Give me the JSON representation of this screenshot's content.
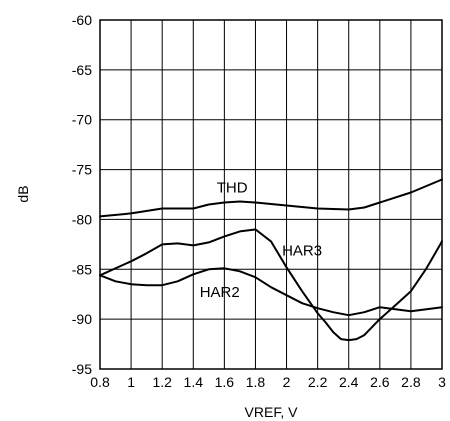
{
  "chart_data": {
    "type": "line",
    "title": "",
    "xlabel": "VREF, V",
    "ylabel": "dB",
    "xlim": [
      0.8,
      3.0
    ],
    "ylim": [
      -95,
      -60
    ],
    "xticks": [
      0.8,
      1.0,
      1.2,
      1.4,
      1.6,
      1.8,
      2.0,
      2.2,
      2.4,
      2.6,
      2.8,
      3.0
    ],
    "xtick_labels": [
      "0.8",
      "1",
      "1.2",
      "1.4",
      "1.6",
      "1.8",
      "2",
      "2.2",
      "2.4",
      "2.6",
      "2.8",
      "3"
    ],
    "yticks": [
      -60,
      -65,
      -70,
      -75,
      -80,
      -85,
      -90,
      -95
    ],
    "ytick_labels": [
      "-60",
      "-65",
      "-70",
      "-75",
      "-80",
      "-85",
      "-90",
      "-95"
    ],
    "grid": true,
    "legend": "none",
    "series": [
      {
        "name": "THD",
        "label_at": [
          1.65,
          -77.3
        ],
        "x": [
          0.8,
          1.0,
          1.2,
          1.4,
          1.5,
          1.6,
          1.7,
          1.8,
          2.0,
          2.2,
          2.4,
          2.5,
          2.6,
          2.8,
          3.0
        ],
        "y": [
          -79.7,
          -79.4,
          -78.9,
          -78.9,
          -78.5,
          -78.3,
          -78.2,
          -78.3,
          -78.6,
          -78.9,
          -79.0,
          -78.8,
          -78.3,
          -77.3,
          -76.0
        ]
      },
      {
        "name": "HAR3",
        "label_at": [
          2.1,
          -83.6
        ],
        "x": [
          0.8,
          1.0,
          1.1,
          1.2,
          1.3,
          1.4,
          1.5,
          1.6,
          1.7,
          1.8,
          1.9,
          2.0,
          2.1,
          2.2,
          2.25,
          2.3,
          2.35,
          2.4,
          2.45,
          2.5,
          2.6,
          2.7,
          2.8,
          2.9,
          3.0
        ],
        "y": [
          -85.6,
          -84.2,
          -83.4,
          -82.5,
          -82.4,
          -82.6,
          -82.3,
          -81.7,
          -81.2,
          -81.0,
          -82.2,
          -84.8,
          -87.2,
          -89.4,
          -90.3,
          -91.3,
          -92.0,
          -92.1,
          -92.0,
          -91.6,
          -90.0,
          -88.6,
          -87.2,
          -84.9,
          -82.2
        ]
      },
      {
        "name": "HAR2",
        "label_at": [
          1.57,
          -87.8
        ],
        "x": [
          0.8,
          0.9,
          1.0,
          1.1,
          1.2,
          1.3,
          1.4,
          1.5,
          1.6,
          1.7,
          1.8,
          1.9,
          2.0,
          2.1,
          2.2,
          2.3,
          2.4,
          2.5,
          2.6,
          2.7,
          2.8,
          2.9,
          3.0
        ],
        "y": [
          -85.6,
          -86.2,
          -86.5,
          -86.6,
          -86.6,
          -86.2,
          -85.5,
          -85.0,
          -84.9,
          -85.2,
          -85.8,
          -86.8,
          -87.6,
          -88.4,
          -88.9,
          -89.3,
          -89.6,
          -89.3,
          -88.8,
          -89.0,
          -89.2,
          -89.0,
          -88.8
        ]
      }
    ]
  }
}
